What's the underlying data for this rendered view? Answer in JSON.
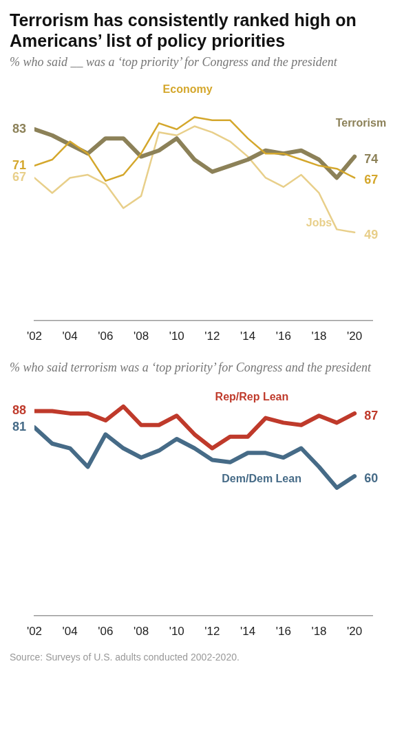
{
  "chart_data": [
    {
      "type": "line",
      "title": "Terrorism has consistently ranked high on Americans’ list of policy priorities",
      "subtitle": "% who said __ was a ‘top priority’ for Congress and the president",
      "x": [
        2002,
        2003,
        2004,
        2005,
        2006,
        2007,
        2008,
        2009,
        2010,
        2011,
        2012,
        2013,
        2014,
        2015,
        2016,
        2017,
        2018,
        2019,
        2020
      ],
      "series": [
        {
          "name": "Economy",
          "color": "#d4a72c",
          "values": [
            71,
            73,
            79,
            75,
            66,
            68,
            75,
            85,
            83,
            87,
            86,
            86,
            80,
            75,
            75,
            73,
            71,
            70,
            67
          ],
          "value_labels": [
            "71",
            null,
            null,
            null,
            null,
            null,
            null,
            null,
            null,
            null,
            null,
            null,
            null,
            null,
            null,
            null,
            null,
            null,
            "67"
          ]
        },
        {
          "name": "Terrorism",
          "color": "#8c8158",
          "values": [
            83,
            81,
            78,
            75,
            80,
            80,
            74,
            76,
            80,
            73,
            69,
            71,
            73,
            76,
            75,
            76,
            73,
            67,
            74
          ],
          "value_labels": [
            "83",
            null,
            null,
            null,
            null,
            null,
            null,
            null,
            null,
            null,
            null,
            null,
            null,
            null,
            null,
            null,
            null,
            null,
            "74"
          ]
        },
        {
          "name": "Jobs",
          "color": "#e8cf8a",
          "values": [
            67,
            62,
            67,
            68,
            65,
            57,
            61,
            82,
            81,
            84,
            82,
            79,
            74,
            67,
            64,
            68,
            62,
            50,
            49
          ],
          "value_labels": [
            "67",
            null,
            null,
            null,
            null,
            null,
            null,
            null,
            null,
            null,
            null,
            null,
            null,
            null,
            null,
            null,
            null,
            null,
            "49"
          ]
        }
      ],
      "xlim": [
        2002,
        2021
      ],
      "xticks": [
        {
          "value": 2002,
          "label": "'02"
        },
        {
          "value": 2004,
          "label": "'04"
        },
        {
          "value": 2006,
          "label": "'06"
        },
        {
          "value": 2008,
          "label": "'08"
        },
        {
          "value": 2010,
          "label": "'10"
        },
        {
          "value": 2012,
          "label": "'12"
        },
        {
          "value": 2014,
          "label": "'14"
        },
        {
          "value": 2016,
          "label": "'16"
        },
        {
          "value": 2018,
          "label": "'18"
        },
        {
          "value": 2020,
          "label": "'20"
        }
      ],
      "tick_labels": "x",
      "grid": false,
      "legend": false,
      "marker": "none",
      "line_style": "solid"
    },
    {
      "type": "line",
      "subtitle": "% who said terrorism was a ‘top priority’ for Congress and the president",
      "x": [
        2002,
        2003,
        2004,
        2005,
        2006,
        2007,
        2008,
        2009,
        2010,
        2011,
        2012,
        2013,
        2014,
        2015,
        2016,
        2017,
        2018,
        2019,
        2020
      ],
      "series": [
        {
          "name": "Rep/Rep Lean",
          "color": "#bf3a2b",
          "values": [
            88,
            88,
            87,
            87,
            84,
            90,
            82,
            82,
            86,
            78,
            72,
            77,
            77,
            85,
            83,
            82,
            86,
            83,
            87
          ],
          "value_labels": [
            "88",
            null,
            null,
            null,
            null,
            null,
            null,
            null,
            null,
            null,
            null,
            null,
            null,
            null,
            null,
            null,
            null,
            null,
            "87"
          ]
        },
        {
          "name": "Dem/Dem Lean",
          "color": "#466b87",
          "values": [
            81,
            74,
            72,
            64,
            78,
            72,
            68,
            71,
            76,
            72,
            67,
            66,
            70,
            70,
            68,
            72,
            64,
            55,
            60
          ],
          "value_labels": [
            "81",
            null,
            null,
            null,
            null,
            null,
            null,
            null,
            null,
            null,
            null,
            null,
            null,
            null,
            null,
            null,
            null,
            null,
            "60"
          ]
        }
      ],
      "xlim": [
        2002,
        2021
      ],
      "xticks": [
        {
          "value": 2002,
          "label": "'02"
        },
        {
          "value": 2004,
          "label": "'04"
        },
        {
          "value": 2006,
          "label": "'06"
        },
        {
          "value": 2008,
          "label": "'08"
        },
        {
          "value": 2010,
          "label": "'10"
        },
        {
          "value": 2012,
          "label": "'12"
        },
        {
          "value": 2014,
          "label": "'14"
        },
        {
          "value": 2016,
          "label": "'16"
        },
        {
          "value": 2018,
          "label": "'18"
        },
        {
          "value": 2020,
          "label": "'20"
        }
      ],
      "tick_labels": "x",
      "grid": false,
      "legend": false,
      "marker": "none",
      "line_style": "solid",
      "annotations": [
        "Source: Surveys of U.S. adults conducted 2002-2020."
      ]
    }
  ]
}
